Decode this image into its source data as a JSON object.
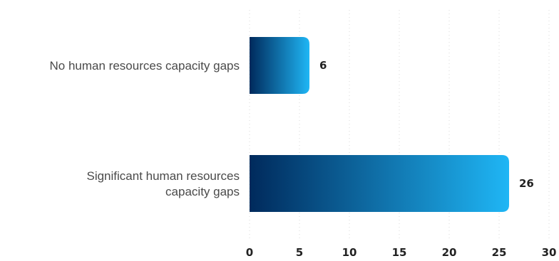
{
  "chart_data": {
    "type": "bar",
    "orientation": "horizontal",
    "categories": [
      [
        "No human resources capacity gaps"
      ],
      [
        "Significant human resources",
        "capacity gaps"
      ]
    ],
    "values": [
      6,
      26
    ],
    "value_labels": [
      "6",
      "26"
    ],
    "xlim": [
      0,
      30
    ],
    "x_ticks": [
      0,
      5,
      10,
      15,
      20,
      25,
      30
    ],
    "x_tick_labels": [
      "0",
      "5",
      "10",
      "15",
      "20",
      "25",
      "30"
    ],
    "title": "",
    "xlabel": "",
    "ylabel": "",
    "grid": true,
    "legend": "none",
    "colors": {
      "bar_gradient_start": "#002a5c",
      "bar_gradient_end": "#1fb6f5",
      "gridline": "#d8d8d8",
      "text": "#222222"
    }
  }
}
